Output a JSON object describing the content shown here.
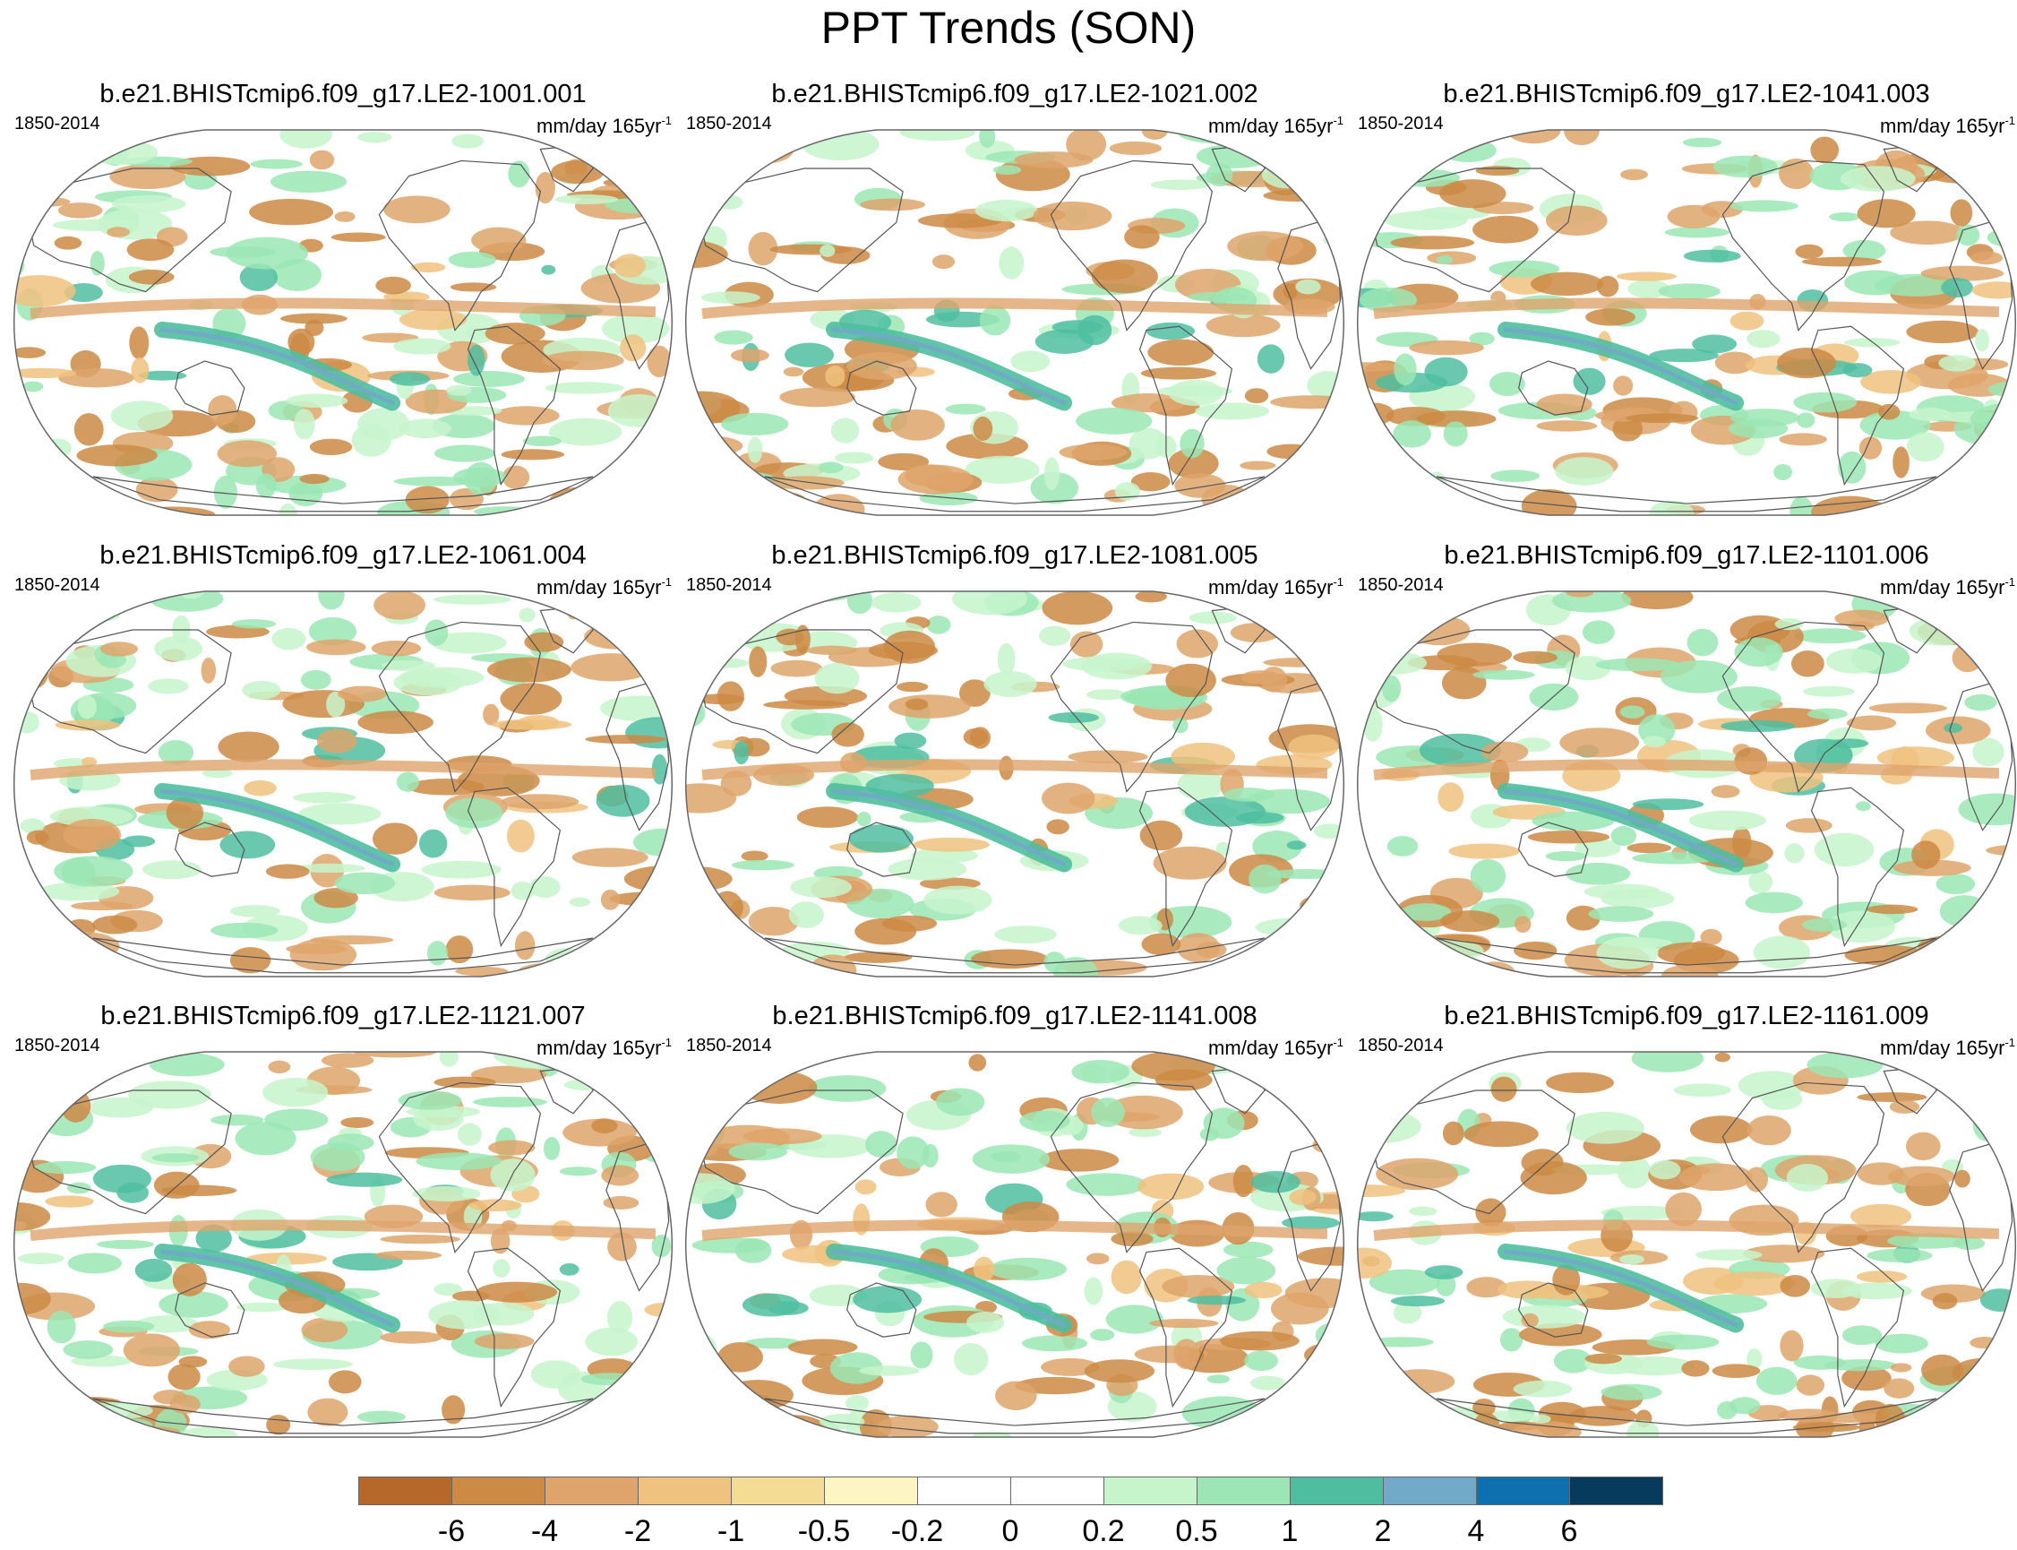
{
  "figure": {
    "title": "PPT Trends (SON)"
  },
  "panels": [
    {
      "title": "b.e21.BHISTcmip6.f09_g17.LE2-1001.001",
      "period": "1850-2014",
      "units": "mm/day 165yr",
      "units_sup": "-1"
    },
    {
      "title": "b.e21.BHISTcmip6.f09_g17.LE2-1021.002",
      "period": "1850-2014",
      "units": "mm/day 165yr",
      "units_sup": "-1"
    },
    {
      "title": "b.e21.BHISTcmip6.f09_g17.LE2-1041.003",
      "period": "1850-2014",
      "units": "mm/day 165yr",
      "units_sup": "-1"
    },
    {
      "title": "b.e21.BHISTcmip6.f09_g17.LE2-1061.004",
      "period": "1850-2014",
      "units": "mm/day 165yr",
      "units_sup": "-1"
    },
    {
      "title": "b.e21.BHISTcmip6.f09_g17.LE2-1081.005",
      "period": "1850-2014",
      "units": "mm/day 165yr",
      "units_sup": "-1"
    },
    {
      "title": "b.e21.BHISTcmip6.f09_g17.LE2-1101.006",
      "period": "1850-2014",
      "units": "mm/day 165yr",
      "units_sup": "-1"
    },
    {
      "title": "b.e21.BHISTcmip6.f09_g17.LE2-1121.007",
      "period": "1850-2014",
      "units": "mm/day 165yr",
      "units_sup": "-1"
    },
    {
      "title": "b.e21.BHISTcmip6.f09_g17.LE2-1141.008",
      "period": "1850-2014",
      "units": "mm/day 165yr",
      "units_sup": "-1"
    },
    {
      "title": "b.e21.BHISTcmip6.f09_g17.LE2-1161.009",
      "period": "1850-2014",
      "units": "mm/day 165yr",
      "units_sup": "-1"
    }
  ],
  "colorbar": {
    "colors": [
      "#b5682a",
      "#cd8a45",
      "#de a46b",
      "#f0c27f",
      "#f4dc95",
      "#fdf6c2",
      "#ffffff",
      "#ffffff",
      "#c7f5cb",
      "#9be6b4",
      "#4fbea0",
      "#72a8c8",
      "#0f70b0",
      "#073b5e"
    ],
    "labels": [
      "-6",
      "-4",
      "-2",
      "-1",
      "-0.5",
      "-0.2",
      "0",
      "0.2",
      "0.5",
      "1",
      "2",
      "4",
      "6"
    ]
  }
}
